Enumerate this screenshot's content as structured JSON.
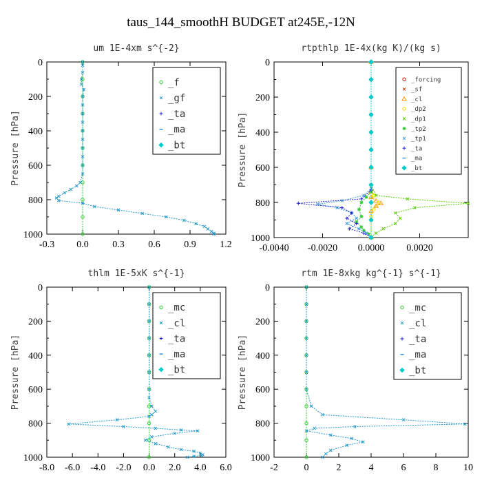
{
  "figure_title": "taus_144_smoothH  BUDGET at245E,-12N",
  "colors": {
    "forcing": "#dd0000",
    "sf": "#cc3300",
    "cl": "#ff9900",
    "dp2": "#ffdd00",
    "dp1": "#55cc00",
    "tp2": "#33cc33",
    "tp1": "#3399dd",
    "ta": "#2222cc",
    "ma": "#0077cc",
    "bt": "#00cccc",
    "f": "#33cc33",
    "gf": "#2299cc",
    "mc": "#33cc33",
    "cl_blue": "#2299cc",
    "blue_curve": "#2288ee"
  },
  "chart_data": [
    {
      "type": "line",
      "title": "um  1E-4xm s^{-2}",
      "ylabel": "Pressure [hPa]",
      "xlim": [
        -0.3,
        1.2
      ],
      "ylim": [
        1000,
        0
      ],
      "xticks": [
        "-0.3",
        "0.0",
        "0.3",
        "0.6",
        "0.9",
        "1.2"
      ],
      "xtick_values": [
        -0.3,
        0.0,
        0.3,
        0.6,
        0.9,
        1.2
      ],
      "yticks": [
        "0",
        "200",
        "400",
        "600",
        "800",
        "1000"
      ],
      "ytick_values": [
        0,
        200,
        400,
        600,
        800,
        1000
      ],
      "legend_position": "top-right",
      "legend_font": 14,
      "series": [
        {
          "name": "_f",
          "color_key": "f",
          "marker": "o",
          "x": [
            0,
            0,
            0,
            0,
            0,
            0,
            0,
            0,
            0,
            0,
            0
          ],
          "y": [
            0,
            100,
            200,
            300,
            400,
            500,
            600,
            700,
            800,
            900,
            1000
          ]
        },
        {
          "name": "_gf",
          "color_key": "gf",
          "marker": "x",
          "x": [
            0,
            0,
            0,
            -0.01,
            -0.01,
            0.01,
            0,
            0,
            0,
            0,
            0,
            0,
            0,
            0,
            0,
            0,
            -0.02,
            -0.05,
            -0.1,
            -0.15,
            -0.2,
            -0.22,
            -0.2,
            0,
            0.1,
            0.3,
            0.5,
            0.7,
            0.85,
            0.95,
            1.02,
            1.05,
            1.08,
            1.1,
            1.1
          ],
          "y": [
            0,
            20,
            60,
            100,
            130,
            160,
            200,
            250,
            300,
            350,
            400,
            450,
            500,
            550,
            600,
            650,
            700,
            720,
            740,
            760,
            780,
            790,
            805,
            820,
            840,
            860,
            880,
            900,
            920,
            940,
            955,
            970,
            985,
            995,
            1000
          ]
        },
        {
          "name": "_ta",
          "color_key": "ta",
          "marker": "+",
          "x": [],
          "y": []
        },
        {
          "name": "_ma",
          "color_key": "ma",
          "marker": "-",
          "x": [],
          "y": []
        },
        {
          "name": "_bt",
          "color_key": "bt",
          "marker": "d",
          "x": [],
          "y": []
        }
      ]
    },
    {
      "type": "line",
      "title": "rtpthlp  1E-4x(kg K)/(kg s)",
      "ylabel": "Pressure [hPa]",
      "xlim": [
        -0.004,
        0.004
      ],
      "ylim": [
        1000,
        0
      ],
      "xticks": [
        "-0.0040",
        "-0.0020",
        "0.0000",
        "0.0020"
      ],
      "xtick_values": [
        -0.004,
        -0.002,
        0.0,
        0.002
      ],
      "yticks": [
        "0",
        "200",
        "400",
        "600",
        "800",
        "1000"
      ],
      "ytick_values": [
        0,
        200,
        400,
        600,
        800,
        1000
      ],
      "legend_position": "top-right",
      "legend_font": 9,
      "series": [
        {
          "name": "_forcing",
          "color_key": "forcing",
          "marker": "o",
          "x": [
            0,
            0,
            0,
            0,
            0,
            0,
            0,
            0,
            0,
            0,
            0
          ],
          "y": [
            0,
            100,
            200,
            300,
            400,
            500,
            600,
            700,
            800,
            900,
            1000
          ]
        },
        {
          "name": "_sf",
          "color_key": "sf",
          "marker": "x",
          "x": [
            0,
            0,
            0,
            0,
            0,
            0,
            0,
            0,
            0,
            0,
            0
          ],
          "y": [
            0,
            100,
            200,
            300,
            400,
            500,
            600,
            700,
            800,
            900,
            1000
          ]
        },
        {
          "name": "_cl",
          "color_key": "cl",
          "marker": "^",
          "x": [
            0,
            0,
            0,
            0,
            0.0002,
            0.0004,
            0.0002,
            0,
            0
          ],
          "y": [
            0,
            600,
            740,
            770,
            790,
            805,
            820,
            850,
            1000
          ]
        },
        {
          "name": "_dp2",
          "color_key": "dp2",
          "marker": "o",
          "x": [
            0,
            0,
            0.0001,
            0.0003,
            0.0001,
            0,
            0
          ],
          "y": [
            0,
            700,
            760,
            800,
            840,
            880,
            1000
          ]
        },
        {
          "name": "_dp1",
          "color_key": "dp1",
          "marker": "x",
          "x": [
            0,
            0,
            0.0002,
            0.0015,
            0.004,
            0.0018,
            0.001,
            0.0012,
            0.001,
            0.0005,
            0.0002,
            0
          ],
          "y": [
            0,
            700,
            760,
            780,
            805,
            830,
            860,
            890,
            920,
            950,
            975,
            1000
          ]
        },
        {
          "name": "_tp2",
          "color_key": "tp2",
          "marker": "*",
          "x": [
            0,
            0,
            -0.0002,
            -0.0004,
            -0.0005,
            -0.0004,
            -0.0006,
            -0.0004,
            -0.0003,
            -0.0001,
            0
          ],
          "y": [
            0,
            740,
            770,
            800,
            840,
            880,
            910,
            940,
            960,
            980,
            1000
          ]
        },
        {
          "name": "_tp1",
          "color_key": "tp1",
          "marker": "x",
          "x": [
            0,
            0,
            -0.0003,
            -0.0012,
            -0.0022,
            -0.0014,
            -0.0008,
            -0.0006,
            -0.001,
            -0.0005,
            -0.0002,
            0
          ],
          "y": [
            0,
            720,
            760,
            790,
            810,
            830,
            860,
            890,
            920,
            950,
            975,
            1000
          ]
        },
        {
          "name": "_ta",
          "color_key": "ta",
          "marker": "+",
          "x": [
            0,
            0,
            -0.0004,
            -0.003,
            -0.0012,
            -0.0008,
            -0.001,
            -0.0006,
            -0.0009,
            -0.0003,
            0
          ],
          "y": [
            0,
            730,
            780,
            805,
            830,
            860,
            890,
            920,
            950,
            975,
            1000
          ]
        },
        {
          "name": "_ma",
          "color_key": "ma",
          "marker": "-",
          "x": [
            0,
            0,
            0,
            0,
            0,
            0,
            0,
            0,
            0,
            0,
            0
          ],
          "y": [
            0,
            100,
            200,
            300,
            400,
            500,
            600,
            700,
            800,
            900,
            1000
          ]
        },
        {
          "name": "_bt",
          "color_key": "bt",
          "marker": "d",
          "x": [
            0,
            0,
            0,
            0,
            0,
            0,
            0,
            0,
            0,
            0,
            0
          ],
          "y": [
            0,
            100,
            200,
            300,
            400,
            500,
            600,
            700,
            800,
            900,
            1000
          ]
        }
      ]
    },
    {
      "type": "line",
      "title": "thlm  1E-5xK s^{-1}",
      "ylabel": "Pressure [hPa]",
      "xlim": [
        -8,
        6
      ],
      "ylim": [
        1000,
        0
      ],
      "xticks": [
        "-8.0",
        "-6.0",
        "-4.0",
        "-2.0",
        "0.0",
        "2.0",
        "4.0",
        "6.0"
      ],
      "xtick_values": [
        -8,
        -6,
        -4,
        -2,
        0,
        2,
        4,
        6
      ],
      "yticks": [
        "0",
        "200",
        "400",
        "600",
        "800",
        "1000"
      ],
      "ytick_values": [
        0,
        200,
        400,
        600,
        800,
        1000
      ],
      "legend_position": "top-right",
      "legend_font": 14,
      "series": [
        {
          "name": "_mc",
          "color_key": "mc",
          "marker": "o",
          "x": [
            0,
            0,
            0,
            0,
            0,
            0,
            0,
            0,
            0,
            0,
            0
          ],
          "y": [
            0,
            100,
            200,
            300,
            400,
            500,
            600,
            700,
            800,
            900,
            1000
          ]
        },
        {
          "name": "_cl",
          "color_key": "cl_blue",
          "marker": "x",
          "x": [
            0,
            0,
            0,
            0,
            0,
            0,
            0,
            0,
            0.2,
            0.5,
            0.2,
            0,
            -2.5,
            -6.3,
            -2,
            0.5,
            2.5,
            3.8,
            2,
            0.2,
            -0.3,
            0.5,
            1.5,
            2.5,
            3.5,
            4,
            4.2,
            4.1,
            3.5,
            3
          ],
          "y": [
            0,
            100,
            200,
            300,
            400,
            500,
            600,
            650,
            700,
            730,
            750,
            760,
            780,
            805,
            820,
            830,
            840,
            845,
            860,
            880,
            900,
            920,
            940,
            955,
            965,
            975,
            985,
            990,
            995,
            1000
          ]
        },
        {
          "name": "_ta",
          "color_key": "ta",
          "marker": "+",
          "x": [],
          "y": []
        },
        {
          "name": "_ma",
          "color_key": "ma",
          "marker": "-",
          "x": [],
          "y": []
        },
        {
          "name": "_bt",
          "color_key": "bt",
          "marker": "d",
          "x": [],
          "y": []
        }
      ]
    },
    {
      "type": "line",
      "title": "rtm  1E-8xkg kg^{-1} s^{-1}",
      "ylabel": "Pressure [hPa]",
      "xlim": [
        -2,
        10
      ],
      "ylim": [
        1000,
        0
      ],
      "xticks": [
        "-2",
        "0",
        "2",
        "4",
        "6",
        "8",
        "10"
      ],
      "xtick_values": [
        -2,
        0,
        2,
        4,
        6,
        8,
        10
      ],
      "yticks": [
        "0",
        "200",
        "400",
        "600",
        "800",
        "1000"
      ],
      "ytick_values": [
        0,
        200,
        400,
        600,
        800,
        1000
      ],
      "legend_position": "top-right",
      "legend_font": 14,
      "series": [
        {
          "name": "_mc",
          "color_key": "mc",
          "marker": "o",
          "x": [
            0,
            0,
            0,
            0,
            0,
            0,
            0,
            0,
            0,
            0,
            0
          ],
          "y": [
            0,
            100,
            200,
            300,
            400,
            500,
            600,
            700,
            800,
            900,
            1000
          ]
        },
        {
          "name": "_cl",
          "color_key": "cl_blue",
          "marker": "x",
          "x": [
            0,
            0,
            0,
            0,
            0,
            0,
            0,
            0.3,
            1,
            6,
            9.8,
            3,
            0.5,
            0,
            1.5,
            2.8,
            3.5,
            2.5,
            1.5,
            1.2,
            1
          ],
          "y": [
            0,
            100,
            200,
            300,
            400,
            500,
            600,
            700,
            750,
            780,
            805,
            820,
            830,
            845,
            870,
            890,
            910,
            930,
            960,
            980,
            1000
          ]
        },
        {
          "name": "_ta",
          "color_key": "ta",
          "marker": "+",
          "x": [],
          "y": []
        },
        {
          "name": "_ma",
          "color_key": "ma",
          "marker": "-",
          "x": [],
          "y": []
        },
        {
          "name": "_bt",
          "color_key": "bt",
          "marker": "d",
          "x": [],
          "y": []
        }
      ]
    }
  ]
}
